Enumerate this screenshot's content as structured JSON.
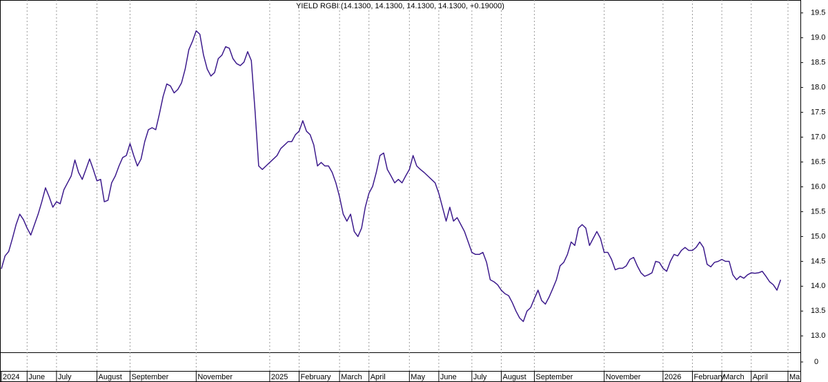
{
  "chart_data": {
    "type": "line",
    "title": "YIELD RGBI (14.1300, 14.1300, 14.1300, 14.1300, +0.19000)",
    "color": "#3c1a8c",
    "categories": [
      "2024",
      null,
      null,
      null,
      null,
      null,
      null,
      "June",
      null,
      null,
      null,
      null,
      null,
      null,
      null,
      "July",
      null,
      null,
      null,
      null,
      null,
      null,
      null,
      null,
      null,
      null,
      "August",
      null,
      null,
      null,
      null,
      null,
      null,
      null,
      null,
      "September",
      null,
      null,
      null,
      null,
      null,
      null,
      null,
      null,
      null,
      null,
      null,
      null,
      null,
      null,
      null,
      null,
      null,
      "November",
      null,
      null,
      null,
      null,
      null,
      null,
      null,
      null,
      null,
      null,
      null,
      null,
      null,
      null,
      null,
      null,
      null,
      null,
      null,
      "2025",
      null,
      null,
      null,
      null,
      null,
      null,
      null,
      "February",
      null,
      null,
      null,
      null,
      null,
      null,
      null,
      null,
      null,
      null,
      "March",
      null,
      null,
      null,
      null,
      null,
      null,
      null,
      "April",
      null,
      null,
      null,
      null,
      null,
      null,
      null,
      null,
      null,
      null,
      "May",
      null,
      null,
      null,
      null,
      null,
      null,
      null,
      "June",
      null,
      null,
      null,
      null,
      null,
      null,
      null,
      null,
      "July",
      null,
      null,
      null,
      null,
      null,
      null,
      null,
      "August",
      null,
      null,
      null,
      null,
      null,
      null,
      null,
      null,
      "September",
      null,
      null,
      null,
      null,
      null,
      null,
      null,
      null,
      null,
      null,
      null,
      null,
      null,
      null,
      null,
      null,
      null,
      null,
      "November",
      null,
      null,
      null,
      null,
      null,
      null,
      null,
      null,
      null,
      null,
      null,
      null,
      null,
      null,
      null,
      "2026",
      null,
      null,
      null,
      null,
      null,
      null,
      null,
      "February",
      null,
      null,
      null,
      null,
      null,
      null,
      null,
      "March",
      null,
      null,
      null,
      null,
      null,
      null,
      null,
      "April",
      null,
      null,
      null,
      null,
      null,
      null,
      null,
      null,
      null,
      "Ma"
    ],
    "values": [
      14.35,
      14.61,
      14.7,
      14.96,
      15.24,
      15.45,
      15.34,
      15.17,
      15.03,
      15.24,
      15.45,
      15.7,
      15.98,
      15.8,
      15.59,
      15.7,
      15.66,
      15.94,
      16.08,
      16.22,
      16.54,
      16.29,
      16.15,
      16.35,
      16.56,
      16.35,
      16.12,
      16.15,
      15.7,
      15.73,
      16.08,
      16.22,
      16.42,
      16.59,
      16.63,
      16.87,
      16.63,
      16.42,
      16.56,
      16.91,
      17.15,
      17.19,
      17.15,
      17.47,
      17.82,
      18.07,
      18.03,
      17.89,
      17.96,
      18.09,
      18.37,
      18.76,
      18.93,
      19.14,
      19.07,
      18.65,
      18.37,
      18.23,
      18.3,
      18.58,
      18.65,
      18.82,
      18.79,
      18.58,
      18.48,
      18.44,
      18.51,
      18.72,
      18.54,
      17.54,
      16.42,
      16.35,
      16.42,
      16.49,
      16.56,
      16.63,
      16.77,
      16.84,
      16.91,
      16.91,
      17.05,
      17.12,
      17.33,
      17.12,
      17.05,
      16.84,
      16.42,
      16.49,
      16.42,
      16.42,
      16.29,
      16.08,
      15.8,
      15.45,
      15.31,
      15.45,
      15.1,
      15.0,
      15.17,
      15.59,
      15.87,
      16.01,
      16.29,
      16.63,
      16.68,
      16.35,
      16.22,
      16.08,
      16.15,
      16.08,
      16.22,
      16.35,
      16.63,
      16.42,
      16.35,
      16.29,
      16.22,
      16.15,
      16.08,
      15.87,
      15.59,
      15.31,
      15.59,
      15.31,
      15.38,
      15.24,
      15.1,
      14.89,
      14.68,
      14.64,
      14.64,
      14.68,
      14.48,
      14.13,
      14.09,
      14.03,
      13.92,
      13.85,
      13.81,
      13.67,
      13.5,
      13.36,
      13.29,
      13.5,
      13.57,
      13.75,
      13.92,
      13.71,
      13.64,
      13.78,
      13.95,
      14.13,
      14.41,
      14.48,
      14.64,
      14.89,
      14.82,
      15.17,
      15.24,
      15.17,
      14.82,
      14.96,
      15.1,
      14.96,
      14.68,
      14.68,
      14.54,
      14.33,
      14.36,
      14.36,
      14.41,
      14.54,
      14.58,
      14.41,
      14.27,
      14.2,
      14.23,
      14.27,
      14.5,
      14.48,
      14.36,
      14.3,
      14.5,
      14.64,
      14.61,
      14.72,
      14.78,
      14.72,
      14.72,
      14.78,
      14.89,
      14.78,
      14.44,
      14.39,
      14.48,
      14.5,
      14.54,
      14.5,
      14.5,
      14.23,
      14.13,
      14.2,
      14.16,
      14.23,
      14.27,
      14.26,
      14.27,
      14.3,
      14.2,
      14.09,
      14.03,
      13.92,
      14.13,
      null,
      null
    ],
    "ylim": [
      12.67,
      19.76
    ],
    "yticks": [
      {
        "value": 13,
        "label": "13.0"
      },
      13.5,
      {
        "value": 14,
        "label": "14.0"
      },
      14.5,
      {
        "value": 15,
        "label": "15.0"
      },
      15.5,
      {
        "value": 16,
        "label": "16.0"
      },
      16.5,
      {
        "value": 17,
        "label": "17.0"
      },
      17.5,
      {
        "value": 18,
        "label": "18.0"
      },
      18.5,
      {
        "value": 19,
        "label": "19.0"
      },
      19.5
    ],
    "lower_panel": {
      "yticks": [
        0
      ]
    }
  }
}
